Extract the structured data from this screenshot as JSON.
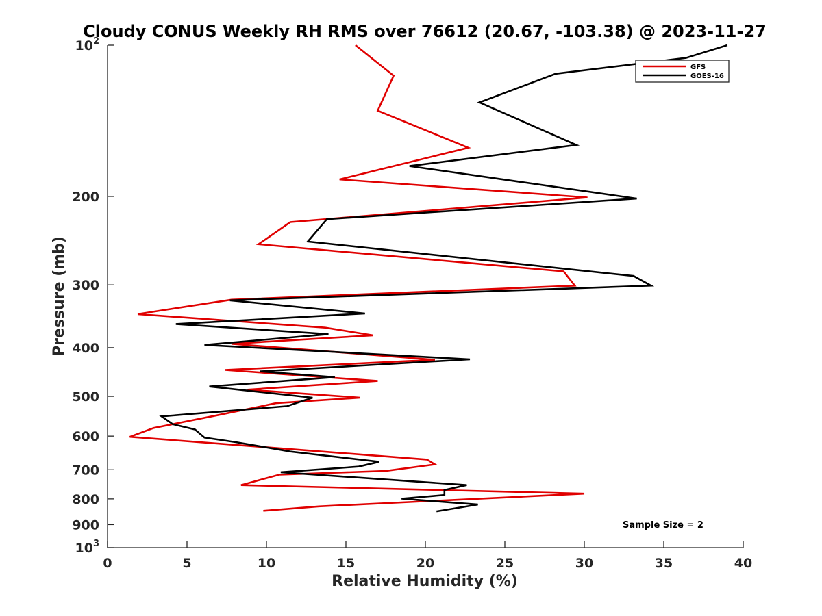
{
  "chart_data": {
    "type": "line",
    "title": "Cloudy CONUS Weekly RH RMS over 76612 (20.67, -103.38) @ 2023-11-27",
    "xlabel": "Relative Humidity (%)",
    "ylabel": "Pressure (mb)",
    "xlim": [
      0,
      40
    ],
    "ylim": [
      100,
      1000
    ],
    "yscale": "log",
    "y_reversed": true,
    "x_ticks": [
      "0",
      "5",
      "10",
      "15",
      "20",
      "25",
      "30",
      "35",
      "40"
    ],
    "y_ticks": [
      {
        "value": 100,
        "label": "10",
        "sup": "2"
      },
      {
        "value": 200,
        "label": "200"
      },
      {
        "value": 300,
        "label": "300"
      },
      {
        "value": 400,
        "label": "400"
      },
      {
        "value": 500,
        "label": "500"
      },
      {
        "value": 600,
        "label": "600"
      },
      {
        "value": 700,
        "label": "700"
      },
      {
        "value": 800,
        "label": "800"
      },
      {
        "value": 900,
        "label": "900"
      },
      {
        "value": 1000,
        "label": "10",
        "sup": "3"
      }
    ],
    "legend_position": "top-right",
    "annotation": "Sample Size = 2",
    "series": [
      {
        "name": "GFS",
        "color": "#e00000",
        "points": [
          [
            15.6,
            100
          ],
          [
            18.0,
            115
          ],
          [
            17.0,
            135
          ],
          [
            22.7,
            160
          ],
          [
            14.6,
            185
          ],
          [
            30.2,
            201
          ],
          [
            11.5,
            225
          ],
          [
            9.5,
            249
          ],
          [
            28.7,
            282
          ],
          [
            29.4,
            301
          ],
          [
            7.8,
            321
          ],
          [
            1.9,
            343
          ],
          [
            13.7,
            365
          ],
          [
            16.7,
            378
          ],
          [
            7.8,
            393
          ],
          [
            20.6,
            423
          ],
          [
            7.4,
            443
          ],
          [
            17.0,
            466
          ],
          [
            8.8,
            485
          ],
          [
            15.9,
            503
          ],
          [
            10.6,
            516
          ],
          [
            7.2,
            543
          ],
          [
            2.9,
            578
          ],
          [
            1.4,
            602
          ],
          [
            20.1,
            668
          ],
          [
            20.6,
            683
          ],
          [
            17.5,
            704
          ],
          [
            10.8,
            716
          ],
          [
            8.4,
            751
          ],
          [
            30.0,
            781
          ],
          [
            13.3,
            828
          ],
          [
            9.8,
            845
          ]
        ]
      },
      {
        "name": "GOES-16",
        "color": "#000000",
        "points": [
          [
            39.0,
            100
          ],
          [
            36.4,
            106
          ],
          [
            28.2,
            114
          ],
          [
            23.4,
            130
          ],
          [
            29.5,
            158
          ],
          [
            19.0,
            174
          ],
          [
            33.3,
            202
          ],
          [
            13.8,
            222
          ],
          [
            12.6,
            246
          ],
          [
            33.1,
            288
          ],
          [
            34.2,
            301
          ],
          [
            7.7,
            322
          ],
          [
            16.2,
            342
          ],
          [
            4.3,
            359
          ],
          [
            13.9,
            376
          ],
          [
            6.1,
            395
          ],
          [
            22.8,
            422
          ],
          [
            9.6,
            446
          ],
          [
            14.3,
            458
          ],
          [
            6.4,
            478
          ],
          [
            12.9,
            503
          ],
          [
            11.3,
            523
          ],
          [
            3.4,
            548
          ],
          [
            4.1,
            568
          ],
          [
            5.5,
            582
          ],
          [
            6.1,
            604
          ],
          [
            8.1,
            617
          ],
          [
            11.5,
            644
          ],
          [
            17.1,
            675
          ],
          [
            15.8,
            690
          ],
          [
            10.9,
            708
          ],
          [
            22.6,
            751
          ],
          [
            21.2,
            768
          ],
          [
            21.2,
            786
          ],
          [
            18.5,
            799
          ],
          [
            23.3,
            821
          ],
          [
            20.7,
            847
          ]
        ]
      }
    ]
  }
}
